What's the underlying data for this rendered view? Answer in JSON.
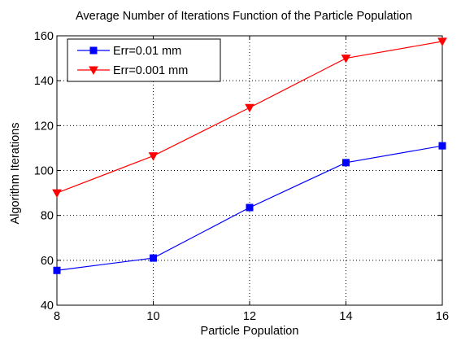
{
  "chart_data": {
    "type": "line",
    "title": "Average Number of Iterations Function of the Particle Population",
    "xlabel": "Particle Population",
    "ylabel": "Algorithm Iterations",
    "x": [
      8,
      10,
      12,
      14,
      16
    ],
    "xlim": [
      8,
      16
    ],
    "ylim": [
      40,
      160
    ],
    "xticks": [
      "8",
      "10",
      "12",
      "14",
      "16"
    ],
    "yticks": [
      "40",
      "60",
      "80",
      "100",
      "120",
      "140",
      "160"
    ],
    "grid": true,
    "legend_position": "top-left",
    "series": [
      {
        "name": "Err=0.01 mm",
        "values": [
          55.5,
          61,
          83.5,
          103.5,
          111
        ],
        "color": "#0000ff",
        "marker": "square"
      },
      {
        "name": "Err=0.001 mm",
        "values": [
          90,
          106.5,
          128,
          150,
          157.5
        ],
        "color": "#ff0000",
        "marker": "triangle-down"
      }
    ]
  }
}
